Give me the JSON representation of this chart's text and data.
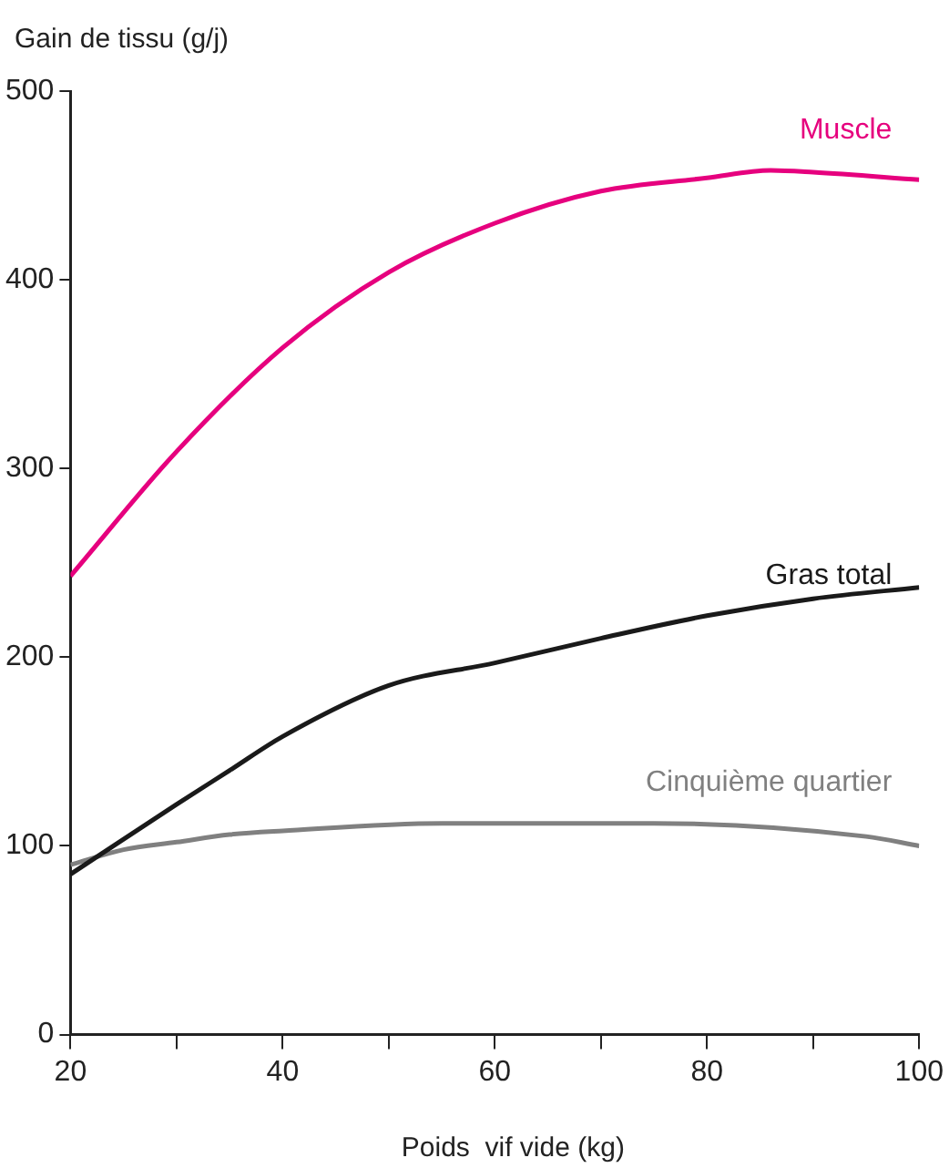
{
  "chart_data": {
    "type": "line",
    "xlabel": "Poids  vif vide (kg)",
    "ylabel": "Gain de tissu (g/j)",
    "xlim": [
      20,
      100
    ],
    "xticks": [
      20,
      {
        "value": 30,
        "label": null
      },
      40,
      {
        "value": 50,
        "label": null
      },
      60,
      {
        "value": 70,
        "label": null
      },
      80,
      {
        "value": 90,
        "label": null
      },
      100
    ],
    "ylim": [
      0,
      500
    ],
    "yticks": [
      0,
      100,
      200,
      300,
      400,
      500
    ],
    "grid": false,
    "legend": false,
    "marker": "none",
    "line_style": "solid",
    "series": [
      {
        "name": "Muscle",
        "color": "#e6007e",
        "x": [
          20,
          30,
          40,
          50,
          60,
          70,
          80,
          86,
          90,
          100
        ],
        "values": [
          243,
          309,
          364,
          404,
          430,
          447,
          454,
          458,
          457,
          453
        ]
      },
      {
        "name": "Gras total",
        "color": "#1a1a1a",
        "x": [
          20,
          30,
          35,
          40,
          50,
          60,
          70,
          80,
          90,
          100
        ],
        "values": [
          85,
          122,
          140,
          158,
          185,
          197,
          210,
          222,
          231,
          237
        ]
      },
      {
        "name": "Cinquième quartier",
        "color": "#808080",
        "x": [
          20,
          25,
          30,
          35,
          40,
          55,
          75,
          95,
          100
        ],
        "values": [
          90,
          98,
          102,
          106,
          108,
          112,
          112,
          105,
          100
        ]
      }
    ]
  }
}
